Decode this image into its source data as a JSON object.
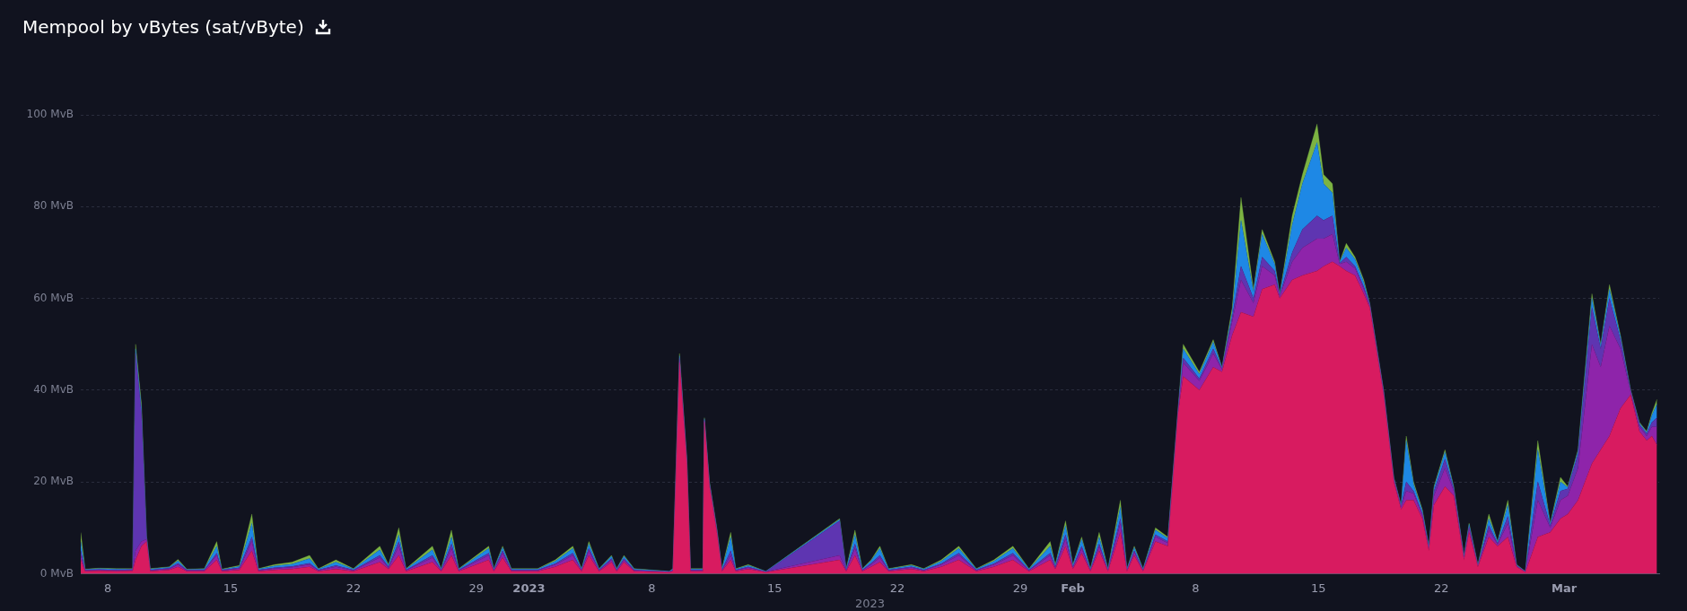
{
  "chart_data": {
    "type": "area",
    "title": "Mempool by vBytes (sat/vByte)",
    "xlabel": "2023",
    "stacked": true,
    "grid": "y",
    "xlim": [
      "2022-12-06T11:00",
      "2023-03-06T10:00"
    ],
    "xticks": [
      {
        "value": "2022-12-08",
        "label": "8"
      },
      {
        "value": "2022-12-15",
        "label": "15"
      },
      {
        "value": "2022-12-22",
        "label": "22"
      },
      {
        "value": "2022-12-29",
        "label": "29"
      },
      {
        "value": "2023-01-01",
        "label": "2023"
      },
      {
        "value": "2023-01-08",
        "label": "8"
      },
      {
        "value": "2023-01-15",
        "label": "15"
      },
      {
        "value": "2023-01-22",
        "label": "22"
      },
      {
        "value": "2023-01-29",
        "label": "29"
      },
      {
        "value": "2023-02-01",
        "label": "Feb"
      },
      {
        "value": "2023-02-08",
        "label": "8"
      },
      {
        "value": "2023-02-15",
        "label": "15"
      },
      {
        "value": "2023-02-22",
        "label": "22"
      },
      {
        "value": "2023-03-01",
        "label": "Mar"
      }
    ],
    "ylim": [
      0,
      100
    ],
    "yticks": [
      {
        "value": 0,
        "label": "0 MvB"
      },
      {
        "value": 20,
        "label": "20 MvB"
      },
      {
        "value": 40,
        "label": "40 MvB"
      },
      {
        "value": 60,
        "label": "60 MvB"
      },
      {
        "value": 80,
        "label": "80 MvB"
      },
      {
        "value": 100,
        "label": "100 MvB"
      }
    ],
    "x": [
      "2022-12-06T11:00",
      "2022-12-06T17:00",
      "2022-12-07T12:00",
      "2022-12-08T12:00",
      "2022-12-09T10:00",
      "2022-12-09T14:00",
      "2022-12-09T22:00",
      "2022-12-10T05:00",
      "2022-12-10T10:00",
      "2022-12-11T12:00",
      "2022-12-12T00:00",
      "2022-12-12T12:00",
      "2022-12-13T12:00",
      "2022-12-14T05:00",
      "2022-12-14T12:00",
      "2022-12-15T12:00",
      "2022-12-16T05:00",
      "2022-12-16T14:00",
      "2022-12-17T12:00",
      "2022-12-18T12:00",
      "2022-12-19T12:00",
      "2022-12-20T00:00",
      "2022-12-21T00:00",
      "2022-12-22T00:00",
      "2022-12-23T12:00",
      "2022-12-24T00:00",
      "2022-12-24T14:00",
      "2022-12-25T00:00",
      "2022-12-26T12:00",
      "2022-12-27T00:00",
      "2022-12-27T14:00",
      "2022-12-28T00:00",
      "2022-12-29T17:00",
      "2022-12-30T00:00",
      "2022-12-30T12:00",
      "2022-12-31T00:00",
      "2023-01-01T12:00",
      "2023-01-02T12:00",
      "2023-01-03T12:00",
      "2023-01-04T00:00",
      "2023-01-04T10:00",
      "2023-01-05T00:00",
      "2023-01-05T17:00",
      "2023-01-06T00:00",
      "2023-01-06T10:00",
      "2023-01-07T00:00",
      "2023-01-09T00:00",
      "2023-01-09T05:00",
      "2023-01-09T14:00",
      "2023-01-10T00:00",
      "2023-01-10T05:00",
      "2023-01-10T22:00",
      "2023-01-11T00:00",
      "2023-01-11T07:00",
      "2023-01-11T17:00",
      "2023-01-12T00:00",
      "2023-01-12T12:00",
      "2023-01-12T19:00",
      "2023-01-13T12:00",
      "2023-01-14T12:00",
      "2023-01-18T17:00",
      "2023-01-19T02:00",
      "2023-01-19T14:00",
      "2023-01-20T00:00",
      "2023-01-20T12:00",
      "2023-01-21T00:00",
      "2023-01-21T12:00",
      "2023-01-22T19:00",
      "2023-01-23T12:00",
      "2023-01-24T12:00",
      "2023-01-25T12:00",
      "2023-01-26T12:00",
      "2023-01-27T12:00",
      "2023-01-28T14:00",
      "2023-01-29T12:00",
      "2023-01-30T17:00",
      "2023-01-31T00:00",
      "2023-01-31T14:00",
      "2023-02-01T00:00",
      "2023-02-01T12:00",
      "2023-02-02T00:00",
      "2023-02-02T12:00",
      "2023-02-03T00:00",
      "2023-02-03T17:00",
      "2023-02-04T02:00",
      "2023-02-04T12:00",
      "2023-02-05T00:00",
      "2023-02-05T17:00",
      "2023-02-06T10:00",
      "2023-02-07T00:00",
      "2023-02-07T07:00",
      "2023-02-08T05:00",
      "2023-02-09T00:00",
      "2023-02-09T12:00",
      "2023-02-10T02:00",
      "2023-02-10T14:00",
      "2023-02-11T07:00",
      "2023-02-11T19:00",
      "2023-02-12T12:00",
      "2023-02-12T19:00",
      "2023-02-13T12:00",
      "2023-02-14T02:00",
      "2023-02-14T22:00",
      "2023-02-15T07:00",
      "2023-02-15T19:00",
      "2023-02-16T05:00",
      "2023-02-16T14:00",
      "2023-02-17T02:00",
      "2023-02-17T14:00",
      "2023-02-17T22:00",
      "2023-02-18T17:00",
      "2023-02-19T07:00",
      "2023-02-19T17:00",
      "2023-02-20T00:00",
      "2023-02-20T10:00",
      "2023-02-20T22:00",
      "2023-02-21T07:00",
      "2023-02-21T14:00",
      "2023-02-22T05:00",
      "2023-02-22T17:00",
      "2023-02-23T07:00",
      "2023-02-23T14:00",
      "2023-02-24T02:00",
      "2023-02-24T17:00",
      "2023-02-25T05:00",
      "2023-02-25T19:00",
      "2023-02-26T07:00",
      "2023-02-26T19:00",
      "2023-02-27T12:00",
      "2023-02-28T05:00",
      "2023-02-28T19:00",
      "2023-03-01T05:00",
      "2023-03-01T19:00",
      "2023-03-02T14:00",
      "2023-03-03T02:00",
      "2023-03-03T14:00",
      "2023-03-04T05:00",
      "2023-03-04T19:00",
      "2023-03-05T07:00",
      "2023-03-05T17:00",
      "2023-03-06T00:00",
      "2023-03-06T07:00"
    ],
    "series": [
      {
        "color": "#d81b60",
        "values": [
          3,
          0.5,
          0.6,
          0.5,
          0.6,
          3,
          6,
          7,
          0.5,
          0.8,
          1.5,
          0.5,
          0.5,
          3,
          0.5,
          0.8,
          5,
          0.5,
          0.8,
          1,
          1.5,
          0.5,
          1,
          0.5,
          2.5,
          1,
          4,
          0.5,
          2.5,
          0.5,
          4,
          0.5,
          3,
          0.5,
          3.5,
          0.5,
          0.5,
          1.5,
          3,
          0.5,
          4,
          0.5,
          2.5,
          0.5,
          2.5,
          0.5,
          0.3,
          0.5,
          46,
          24,
          0.5,
          0.5,
          33,
          19,
          9,
          0.5,
          3,
          0.5,
          1,
          0.3,
          3,
          0.5,
          4,
          0.5,
          1.5,
          2.5,
          0.5,
          1,
          0.5,
          1.5,
          3,
          0.5,
          1.5,
          3,
          0.5,
          3,
          1,
          6,
          1,
          4.5,
          0.5,
          5,
          0.5,
          9,
          0.5,
          4,
          0.5,
          7,
          6,
          35,
          43,
          40,
          45,
          44,
          52,
          57,
          56,
          62,
          63,
          60,
          64,
          65,
          66,
          67,
          68,
          67,
          66,
          65,
          61,
          58,
          39,
          20,
          14,
          16,
          16,
          12,
          5,
          15,
          19,
          17,
          3,
          9,
          1.5,
          8,
          6,
          8,
          1.5,
          0.3,
          8,
          9,
          12,
          13,
          16,
          24,
          27,
          30,
          36,
          39,
          31,
          29,
          30,
          28
        ]
      },
      {
        "color": "#8e24aa",
        "values": [
          1,
          0.2,
          0.2,
          0.2,
          0.1,
          2,
          1,
          0.5,
          0.2,
          0.2,
          0.5,
          0.2,
          0.2,
          1,
          0.2,
          0.3,
          2,
          0.2,
          0.3,
          0.4,
          0.5,
          0.2,
          0.5,
          0.2,
          1,
          0.3,
          2,
          0.2,
          1,
          0.2,
          1.5,
          0.2,
          1,
          0.2,
          1,
          0.2,
          0.2,
          0.5,
          1,
          0.2,
          1,
          0.2,
          0.5,
          0.2,
          0.5,
          0.2,
          0.1,
          0.2,
          0.5,
          0.3,
          0.2,
          0.2,
          0.3,
          0.3,
          0.3,
          0.2,
          1,
          0.2,
          0.3,
          0.1,
          1,
          0.2,
          1.5,
          0.2,
          0.5,
          1,
          0.2,
          0.3,
          0.2,
          0.5,
          1,
          0.2,
          0.5,
          1,
          0.2,
          1,
          0.3,
          1.5,
          0.3,
          1,
          0.2,
          1,
          0.2,
          2,
          0.2,
          0.7,
          0.2,
          1,
          0.7,
          0.5,
          3,
          2,
          3,
          0.5,
          3,
          7,
          3,
          5,
          2,
          0.5,
          4,
          6,
          7,
          6,
          6,
          0.5,
          2,
          1.5,
          1,
          0.5,
          0.5,
          0.5,
          0.5,
          2,
          1.5,
          0.8,
          0.4,
          2,
          4,
          1,
          0.4,
          0.8,
          0.2,
          1.5,
          0.4,
          3,
          0.2,
          0.1,
          8,
          1,
          4,
          4,
          7,
          26,
          18,
          24,
          13,
          0.5,
          1,
          1,
          2,
          4
        ]
      },
      {
        "color": "#5e35b1",
        "values": [
          1,
          0.1,
          0.1,
          0.1,
          0.2,
          43,
          28,
          0.5,
          0.1,
          0.2,
          0.3,
          0.1,
          0.1,
          0.5,
          0.1,
          0.2,
          1,
          0.1,
          0.2,
          0.2,
          0.3,
          0.1,
          0.3,
          0.1,
          0.5,
          0.2,
          1,
          0.1,
          0.5,
          0.1,
          1,
          0.1,
          0.5,
          0.1,
          0.5,
          0.1,
          0.1,
          0.2,
          0.5,
          0.1,
          0.5,
          0.1,
          0.3,
          0.1,
          0.3,
          0.1,
          0,
          0.1,
          0.5,
          0.3,
          0.1,
          0.1,
          0.3,
          0.3,
          0.3,
          0.1,
          1,
          0.1,
          0.2,
          0,
          7.5,
          0.1,
          1,
          0.1,
          0.3,
          0.5,
          0.1,
          0.2,
          0.1,
          0.2,
          0.5,
          0.1,
          0.2,
          0.5,
          0.1,
          0.5,
          0.2,
          1,
          0.2,
          0.5,
          0.1,
          0.5,
          0.1,
          1,
          0.1,
          0.3,
          0.1,
          0.5,
          0.3,
          0.2,
          1,
          0.5,
          1,
          0.2,
          1,
          3,
          1,
          2,
          1,
          0.2,
          2,
          4,
          5,
          4,
          4,
          0.2,
          1,
          0.5,
          0.5,
          0.2,
          0.2,
          0.2,
          0.2,
          2,
          0.5,
          0.3,
          0.2,
          1,
          2,
          0.5,
          0.2,
          0.5,
          0.1,
          1,
          0.2,
          1.5,
          0.1,
          0,
          4,
          0.5,
          2,
          1.5,
          3,
          8,
          4,
          6,
          2,
          0.3,
          0.5,
          0.5,
          1,
          2
        ]
      },
      {
        "color": "#1e88e5",
        "values": [
          2,
          0.1,
          0.2,
          0.2,
          0.1,
          1,
          1,
          0.2,
          0.2,
          0.2,
          0.5,
          0.1,
          0.2,
          1.5,
          0.1,
          0.3,
          3,
          0.2,
          0.4,
          0.5,
          1,
          0.2,
          0.7,
          0.2,
          1.2,
          0.3,
          1.5,
          0.2,
          1.2,
          0.2,
          1.5,
          0.2,
          1,
          0.2,
          0.7,
          0.2,
          0.2,
          0.5,
          1,
          0.2,
          1,
          0.2,
          0.5,
          0.2,
          0.5,
          0.2,
          0.1,
          0.2,
          0.5,
          0.2,
          0.2,
          0.2,
          0.2,
          0.2,
          0.2,
          0.2,
          3,
          0.2,
          0.3,
          0.1,
          0.3,
          0.2,
          2,
          0.2,
          0.5,
          1.5,
          0.2,
          0.3,
          0.2,
          0.5,
          1,
          0.2,
          0.5,
          1,
          0.2,
          1.5,
          0.3,
          2,
          0.3,
          1.5,
          0.2,
          1.5,
          0.2,
          2.5,
          0.2,
          0.7,
          0.2,
          1,
          0.7,
          0.2,
          2,
          1,
          1.5,
          0.2,
          1,
          10,
          1.5,
          5,
          1.5,
          0.2,
          6,
          10,
          16,
          8,
          5,
          0.2,
          2,
          1.5,
          1,
          0.2,
          0.2,
          0.2,
          0.2,
          9,
          1.5,
          0.6,
          0.3,
          0.7,
          1.5,
          0.3,
          0.3,
          0.5,
          0.1,
          1.5,
          0.3,
          2.5,
          0.1,
          0.1,
          7,
          0.3,
          2,
          0.3,
          0.7,
          2,
          0.7,
          2,
          0.7,
          0.1,
          0.3,
          0.3,
          1.5,
          3
        ]
      },
      {
        "color": "#7cb342",
        "values": [
          2,
          0.1,
          0.1,
          0.1,
          0.1,
          1,
          1,
          0.1,
          0.1,
          0.1,
          0.3,
          0.1,
          0.1,
          1,
          0.1,
          0.2,
          2,
          0.1,
          0.3,
          0.4,
          0.7,
          0.1,
          0.5,
          0.1,
          0.8,
          0.2,
          1.5,
          0.1,
          0.8,
          0.1,
          1.5,
          0.1,
          0.5,
          0.1,
          0.3,
          0.1,
          0.1,
          0.3,
          0.5,
          0.1,
          0.5,
          0.1,
          0.2,
          0.1,
          0.2,
          0.1,
          0,
          0.1,
          0.5,
          0.2,
          0.1,
          0.1,
          0.2,
          0.2,
          0.2,
          0.1,
          1,
          0.1,
          0.2,
          0,
          0.2,
          0.1,
          1,
          0.1,
          0.2,
          0.5,
          0.1,
          0.2,
          0.1,
          0.3,
          0.5,
          0.1,
          0.3,
          0.5,
          0.1,
          1,
          0.2,
          1,
          0.2,
          0.5,
          0.1,
          1,
          0.1,
          1.5,
          0.1,
          0.3,
          0.1,
          0.5,
          0.3,
          0.1,
          1,
          0.5,
          0.5,
          0.1,
          1,
          5,
          0.5,
          1,
          0.5,
          0.1,
          2,
          2,
          4,
          2,
          2,
          0.1,
          1,
          0.5,
          0.5,
          0.1,
          0.1,
          0.1,
          0.1,
          1,
          0.5,
          0.3,
          0.1,
          0.3,
          0.5,
          0.2,
          0.1,
          0.2,
          0.1,
          1,
          0.1,
          1,
          0.1,
          0,
          2,
          0.2,
          1,
          0.2,
          0.3,
          1,
          0.3,
          1,
          0.3,
          0.1,
          0.2,
          0.2,
          0.5,
          1
        ]
      }
    ]
  }
}
